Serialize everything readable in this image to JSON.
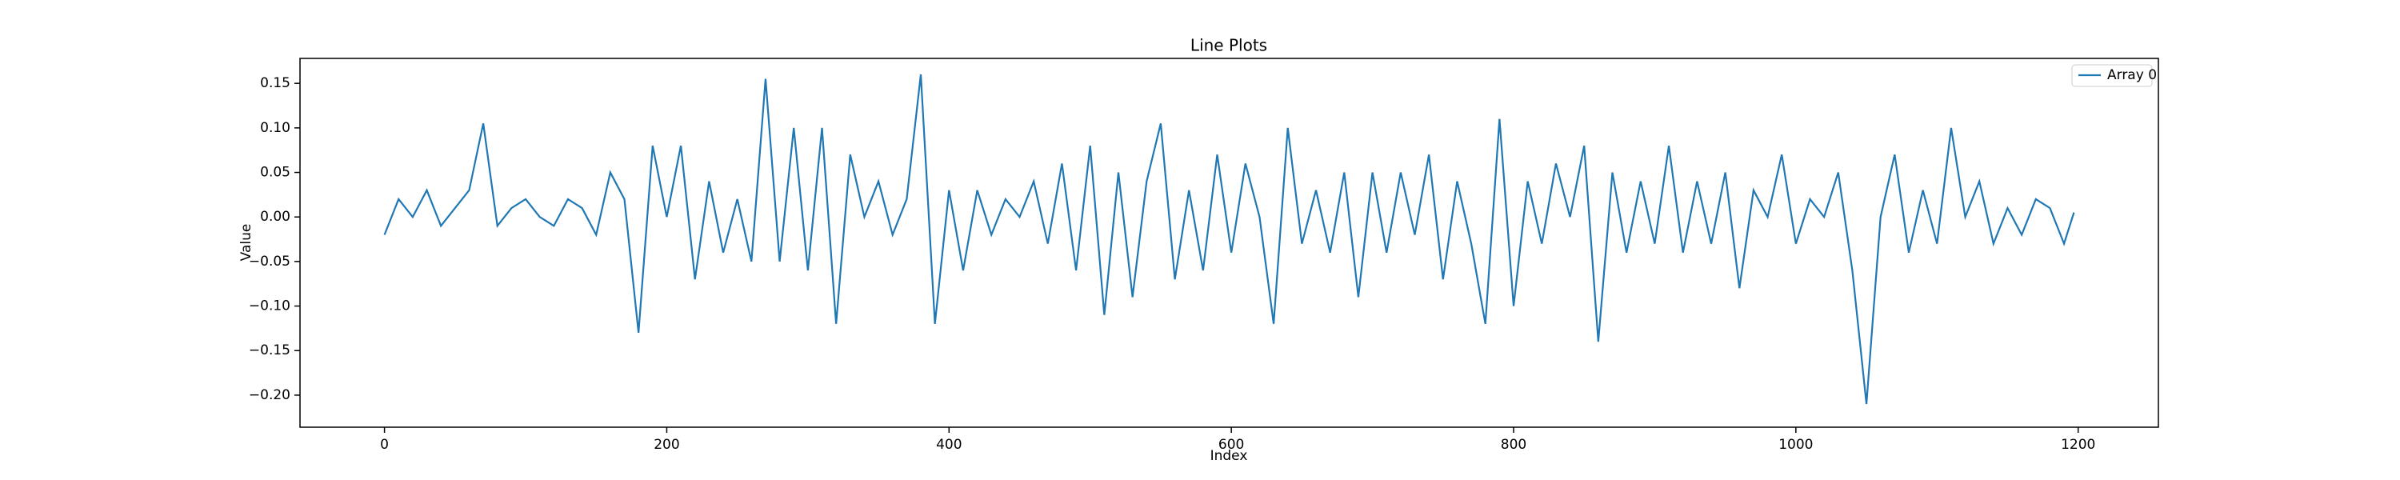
{
  "chart_data": {
    "type": "line",
    "title": "Line Plots",
    "x_label": "Index",
    "y_label": "Value",
    "x": [
      0,
      10,
      20,
      30,
      40,
      50,
      60,
      70,
      80,
      90,
      100,
      110,
      120,
      130,
      140,
      150,
      160,
      170,
      180,
      190,
      200,
      210,
      220,
      230,
      240,
      250,
      260,
      270,
      280,
      290,
      300,
      310,
      320,
      330,
      340,
      350,
      360,
      370,
      380,
      390,
      400,
      410,
      420,
      430,
      440,
      450,
      460,
      470,
      480,
      490,
      500,
      510,
      520,
      530,
      540,
      550,
      560,
      570,
      580,
      590,
      600,
      610,
      620,
      630,
      640,
      650,
      660,
      670,
      680,
      690,
      700,
      710,
      720,
      730,
      740,
      750,
      760,
      770,
      780,
      790,
      800,
      810,
      820,
      830,
      840,
      850,
      860,
      870,
      880,
      890,
      900,
      910,
      920,
      930,
      940,
      950,
      960,
      970,
      980,
      990,
      1000,
      1010,
      1020,
      1030,
      1040,
      1050,
      1060,
      1070,
      1080,
      1090,
      1100,
      1110,
      1120,
      1130,
      1140,
      1150,
      1160,
      1170,
      1180,
      1190,
      1197
    ],
    "series": [
      {
        "name": "Array 0",
        "color": "#1f77b4",
        "values": [
          -0.02,
          0.02,
          0,
          0.03,
          -0.01,
          0.01,
          0.03,
          0.105,
          -0.01,
          0.01,
          0.02,
          0,
          -0.01,
          0.02,
          0.01,
          -0.02,
          0.05,
          0.02,
          -0.13,
          0.08,
          0,
          0.08,
          -0.07,
          0.04,
          -0.04,
          0.02,
          -0.05,
          0.155,
          -0.05,
          0.1,
          -0.06,
          0.1,
          -0.12,
          0.07,
          0,
          0.04,
          -0.02,
          0.02,
          0.16,
          -0.12,
          0.03,
          -0.06,
          0.03,
          -0.02,
          0.02,
          0,
          0.04,
          -0.03,
          0.06,
          -0.06,
          0.08,
          -0.11,
          0.05,
          -0.09,
          0.04,
          0.105,
          -0.07,
          0.03,
          -0.06,
          0.07,
          -0.04,
          0.06,
          0,
          -0.12,
          0.1,
          -0.03,
          0.03,
          -0.04,
          0.05,
          -0.09,
          0.05,
          -0.04,
          0.05,
          -0.02,
          0.07,
          -0.07,
          0.04,
          -0.03,
          -0.12,
          0.11,
          -0.1,
          0.04,
          -0.03,
          0.06,
          0,
          0.08,
          -0.14,
          0.05,
          -0.04,
          0.04,
          -0.03,
          0.08,
          -0.04,
          0.04,
          -0.03,
          0.05,
          -0.08,
          0.03,
          0,
          0.07,
          -0.03,
          0.02,
          0,
          0.05,
          -0.06,
          -0.21,
          0,
          0.07,
          -0.04,
          0.03,
          -0.03,
          0.1,
          0,
          0.04,
          -0.03,
          0.01,
          -0.02,
          0.02,
          0.01,
          -0.03,
          0.005
        ]
      }
    ],
    "xlim": [
      -59.85,
      1256.85
    ],
    "ylim": [
      -0.236,
      0.178
    ],
    "xticks": [
      0,
      200,
      400,
      600,
      800,
      1000,
      1200
    ],
    "yticks": [
      {
        "value": -0.2,
        "label": "−0.20"
      },
      {
        "value": -0.15,
        "label": "−0.15"
      },
      {
        "value": -0.1,
        "label": "−0.10"
      },
      {
        "value": -0.05,
        "label": "−0.05"
      },
      {
        "value": 0,
        "label": "0.00"
      },
      {
        "value": 0.05,
        "label": "0.05"
      },
      {
        "value": 0.1,
        "label": "0.10"
      },
      {
        "value": 0.15,
        "label": "0.15"
      }
    ],
    "legend": "upper right",
    "grid": false
  }
}
